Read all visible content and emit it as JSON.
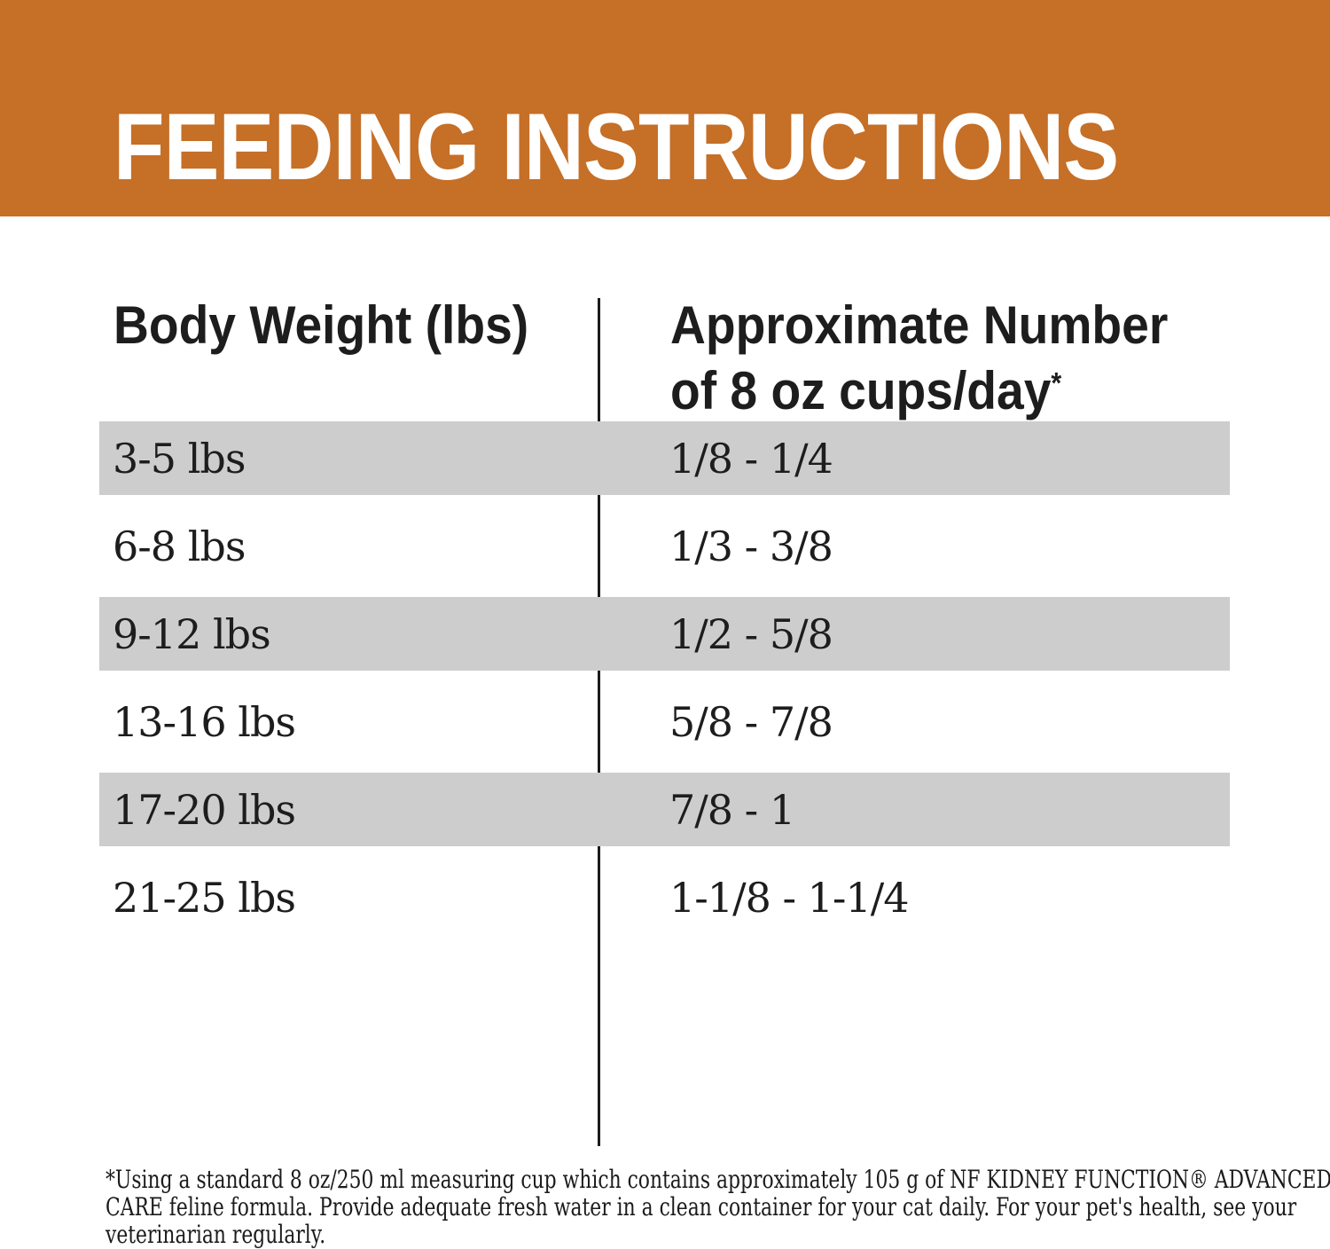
{
  "banner": {
    "title": "FEEDING INSTRUCTIONS",
    "background_color": "#c56f27",
    "title_color": "#ffffff"
  },
  "table": {
    "columns": {
      "weight_header": "Body Weight (lbs)",
      "cups_header_line1": "Approximate Number",
      "cups_header_line2": "of 8 oz cups/day",
      "cups_header_footnote_marker": "*"
    },
    "shaded_row_color": "#cdcdcd",
    "rows": [
      {
        "weight": "3-5 lbs",
        "cups": "1/8 - 1/4",
        "shaded": true
      },
      {
        "weight": "6-8 lbs",
        "cups": "1/3 - 3/8",
        "shaded": false
      },
      {
        "weight": "9-12 lbs",
        "cups": "1/2 - 5/8",
        "shaded": true
      },
      {
        "weight": "13-16 lbs",
        "cups": "5/8 - 7/8",
        "shaded": false
      },
      {
        "weight": "17-20 lbs",
        "cups": "7/8 - 1",
        "shaded": true
      },
      {
        "weight": "21-25 lbs",
        "cups": "1-1/8 - 1-1/4",
        "shaded": false
      }
    ]
  },
  "footnote": {
    "lines": [
      "*Using a standard 8 oz/250 ml measuring cup which contains approximately 105 g of NF KIDNEY FUNCTION® ADVANCED",
      "CARE feline formula. Provide adequate fresh water in a clean container for your cat daily. For your pet's health, see your",
      "veterinarian regularly."
    ]
  }
}
